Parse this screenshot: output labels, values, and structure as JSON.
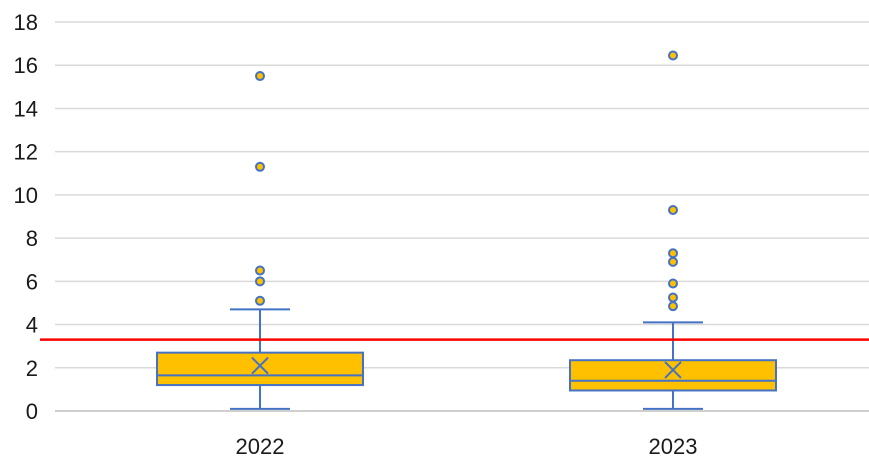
{
  "chart_data": {
    "type": "box",
    "categories": [
      "2022",
      "2023"
    ],
    "ylim": [
      0,
      18
    ],
    "yticks": [
      0,
      2,
      4,
      6,
      8,
      10,
      12,
      14,
      16,
      18
    ],
    "ytick_labels": [
      "0",
      "2",
      "4",
      "6",
      "8",
      "10",
      "12",
      "14",
      "16",
      "18"
    ],
    "grid": true,
    "reference_line": 3.3,
    "boxes": [
      {
        "category": "2022",
        "min": 0.1,
        "q1": 1.2,
        "median": 1.65,
        "q3": 2.7,
        "max": 4.7,
        "mean": 2.1,
        "outliers": [
          5.1,
          6.0,
          6.5,
          11.3,
          15.5
        ]
      },
      {
        "category": "2023",
        "min": 0.1,
        "q1": 0.95,
        "median": 1.4,
        "q3": 2.35,
        "max": 4.1,
        "mean": 1.9,
        "outliers": [
          4.85,
          5.25,
          5.9,
          6.9,
          7.3,
          9.3,
          16.45
        ]
      }
    ],
    "colors": {
      "box_fill": "#FFC000",
      "box_stroke": "#4472C4",
      "outlier_fill": "#FFC000",
      "outlier_stroke": "#4472C4",
      "reference_line": "#FF0000",
      "grid": "#D9D9D9",
      "axis": "#BFBFBF"
    }
  }
}
